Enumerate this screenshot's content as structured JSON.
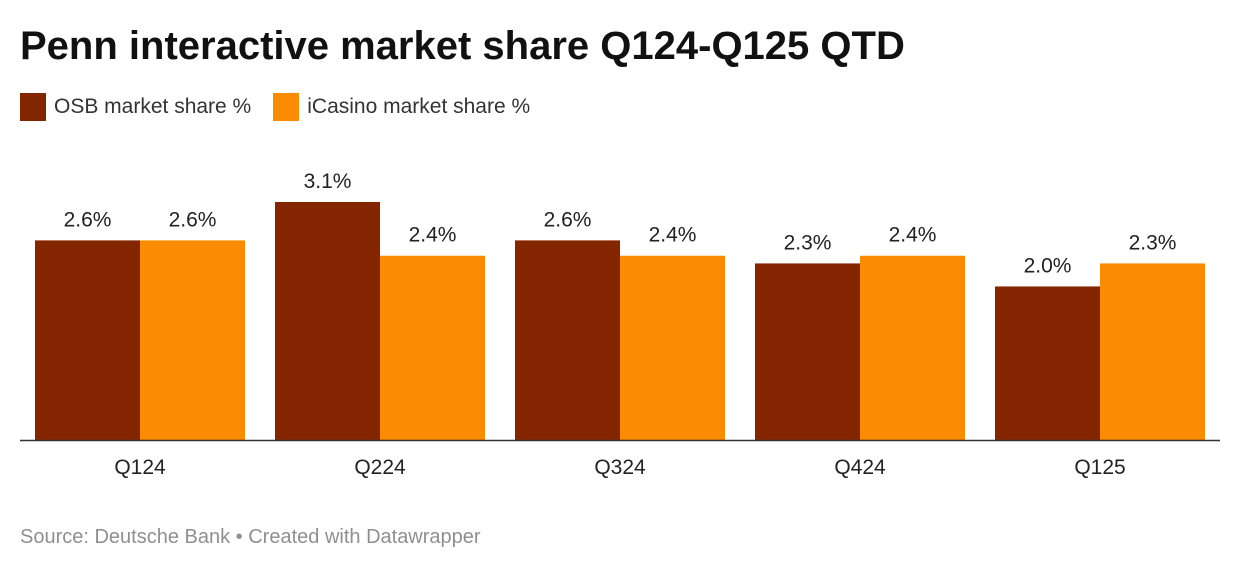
{
  "chart_data": {
    "type": "bar",
    "title": "Penn interactive market share Q124-Q125 QTD",
    "categories": [
      "Q124",
      "Q224",
      "Q324",
      "Q424",
      "Q125"
    ],
    "series": [
      {
        "name": "OSB market share %",
        "values": [
          2.6,
          3.1,
          2.6,
          2.3,
          2.0
        ],
        "labels": [
          "2.6%",
          "3.1%",
          "2.6%",
          "2.3%",
          "2.0%"
        ],
        "color": "#832600"
      },
      {
        "name": "iCasino market share %",
        "values": [
          2.6,
          2.4,
          2.4,
          2.4,
          2.3
        ],
        "labels": [
          "2.6%",
          "2.4%",
          "2.4%",
          "2.4%",
          "2.3%"
        ],
        "color": "#fb8b00"
      }
    ],
    "xlabel": "",
    "ylabel": "",
    "ylim": [
      0,
      3.1
    ],
    "grid": false,
    "legend": "top-left"
  },
  "source": "Source: Deutsche Bank • Created with Datawrapper"
}
